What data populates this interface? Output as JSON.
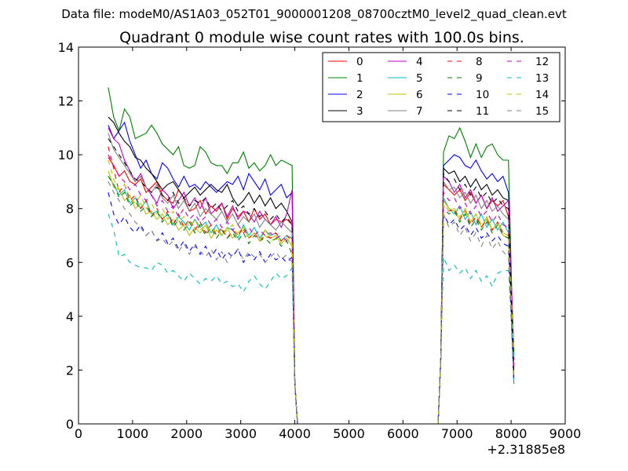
{
  "chart_data": {
    "type": "line",
    "suptitle": "Data file: modeM0/AS1A03_052T01_9000001208_08700cztM0_level2_quad_clean.evt",
    "title": "Quadrant 0 module wise count rates with 100.0s bins.",
    "xlabel": "",
    "ylabel": "",
    "x_offset_label": "+2.31885e8",
    "xlim": [
      0,
      9000
    ],
    "ylim": [
      0,
      14
    ],
    "x_ticks": [
      0,
      1000,
      2000,
      3000,
      4000,
      5000,
      6000,
      7000,
      8000,
      9000
    ],
    "y_ticks": [
      0,
      2,
      4,
      6,
      8,
      10,
      12,
      14
    ],
    "x_tick_labels": [
      "0",
      "1000",
      "2000",
      "3000",
      "4000",
      "5000",
      "6000",
      "7000",
      "8000",
      "9000"
    ],
    "y_tick_labels": [
      "0",
      "2",
      "4",
      "6",
      "8",
      "10",
      "12",
      "14"
    ],
    "grid": false,
    "legend_position": "top-right",
    "legend_columns": 4,
    "segment1": {
      "x_start": 550,
      "x_end": 3950,
      "x_step": 100
    },
    "segment2": {
      "x_start": 6750,
      "x_end": 7950,
      "x_step": 100
    },
    "series": [
      {
        "name": "0",
        "color": "#ff0000",
        "dash": false,
        "level1": [
          9.9,
          9.6,
          9.2,
          9.4,
          9.0,
          8.9,
          9.1,
          8.6,
          8.8,
          9.0,
          8.5,
          8.3,
          8.2,
          8.7,
          8.4,
          7.9,
          8.0,
          8.3,
          7.8,
          8.1,
          7.9,
          8.2,
          7.6,
          8.0,
          7.7,
          7.9,
          7.5,
          8.0,
          7.6,
          7.8,
          7.4,
          7.6,
          7.5,
          7.6,
          7.4
        ],
        "start1": 9.9,
        "level2": [
          8.9,
          8.7,
          8.5,
          8.7,
          8.3,
          8.6,
          8.2,
          8.5,
          8.0,
          8.3,
          8.1,
          8.3,
          7.7
        ]
      },
      {
        "name": "1",
        "color": "#008000",
        "dash": false,
        "level1": [
          12.5,
          11.4,
          10.9,
          11.7,
          11.4,
          10.6,
          10.7,
          10.8,
          11.1,
          10.8,
          10.4,
          10.2,
          10.0,
          10.3,
          9.6,
          9.5,
          9.6,
          10.3,
          10.1,
          9.7,
          9.6,
          9.6,
          9.3,
          9.7,
          9.7,
          10.1,
          9.5,
          9.7,
          9.4,
          9.6,
          10.0,
          9.6,
          9.8,
          9.7,
          9.6
        ],
        "start1": 12.5,
        "level2": [
          10.1,
          10.7,
          10.6,
          11.0,
          10.5,
          9.9,
          10.4,
          9.9,
          10.3,
          10.4,
          10.0,
          9.8,
          9.8
        ]
      },
      {
        "name": "2",
        "color": "#0000ff",
        "dash": false,
        "level1": [
          11.1,
          10.6,
          10.9,
          11.2,
          10.5,
          10.0,
          9.5,
          9.8,
          9.3,
          9.1,
          9.7,
          9.5,
          9.1,
          8.8,
          9.2,
          8.8,
          8.9,
          8.7,
          9.0,
          8.8,
          8.6,
          8.8,
          9.0,
          8.9,
          9.2,
          8.7,
          9.3,
          9.0,
          8.7,
          9.1,
          8.5,
          8.7,
          8.9,
          8.4,
          8.6
        ],
        "start1": 11.1,
        "level2": [
          9.6,
          9.8,
          10.0,
          9.9,
          9.6,
          9.5,
          9.8,
          9.4,
          9.1,
          9.3,
          9.0,
          9.2,
          8.6
        ]
      },
      {
        "name": "3",
        "color": "#000000",
        "dash": false,
        "level1": [
          11.4,
          11.2,
          10.8,
          10.5,
          10.3,
          9.9,
          9.8,
          9.5,
          9.3,
          9.0,
          8.7,
          8.9,
          9.0,
          8.7,
          8.4,
          8.6,
          8.8,
          8.5,
          8.7,
          8.9,
          8.7,
          8.6,
          8.9,
          8.4,
          8.1,
          8.3,
          8.6,
          8.2,
          8.5,
          8.1,
          8.4,
          8.0,
          8.2,
          7.9,
          7.5
        ],
        "start1": 11.4,
        "level2": [
          9.5,
          9.3,
          9.4,
          9.0,
          9.2,
          8.8,
          9.1,
          8.7,
          8.9,
          8.5,
          8.7,
          8.4,
          8.3
        ]
      },
      {
        "name": "4",
        "color": "#bf00bf",
        "dash": false,
        "level1": [
          11.0,
          10.6,
          10.4,
          9.8,
          9.4,
          9.0,
          9.3,
          8.8,
          8.5,
          8.2,
          8.7,
          8.5,
          8.0,
          8.3,
          8.6,
          8.1,
          8.4,
          8.0,
          8.4,
          7.8,
          8.0,
          8.2,
          7.7,
          8.1,
          7.6,
          7.9,
          7.8,
          7.5,
          7.9,
          7.6,
          7.4,
          7.7,
          7.3,
          7.8,
          8.7
        ],
        "start1": 11.0,
        "level2": [
          9.2,
          9.0,
          8.6,
          8.9,
          8.4,
          8.7,
          8.2,
          8.5,
          8.0,
          8.4,
          7.9,
          8.1,
          8.3
        ]
      },
      {
        "name": "5",
        "color": "#00bfbf",
        "dash": false,
        "level1": [
          9.2,
          8.9,
          8.5,
          8.7,
          8.2,
          8.4,
          8.0,
          8.3,
          7.8,
          7.9,
          7.6,
          7.8,
          7.4,
          7.7,
          7.5,
          7.2,
          7.6,
          7.3,
          7.5,
          7.1,
          7.4,
          7.0,
          7.3,
          7.2,
          6.9,
          7.4,
          7.0,
          7.3,
          6.9,
          7.2,
          7.0,
          7.1,
          6.8,
          7.0,
          6.9
        ],
        "start1": 9.2,
        "level2": [
          8.4,
          8.0,
          7.8,
          8.1,
          7.6,
          7.9,
          7.4,
          7.8,
          7.3,
          7.6,
          7.2,
          7.5,
          7.1
        ]
      },
      {
        "name": "6",
        "color": "#bfbf00",
        "dash": false,
        "level1": [
          9.4,
          8.8,
          8.7,
          8.3,
          8.5,
          8.0,
          8.2,
          7.8,
          7.9,
          7.6,
          7.8,
          7.4,
          7.6,
          7.2,
          7.4,
          7.0,
          7.3,
          7.1,
          7.4,
          6.9,
          7.2,
          7.0,
          7.3,
          6.9,
          7.1,
          7.3,
          6.9,
          7.1,
          6.8,
          7.2,
          6.9,
          7.0,
          6.7,
          6.9,
          6.6
        ],
        "start1": 9.4,
        "level2": [
          8.3,
          8.0,
          7.9,
          7.6,
          8.0,
          7.5,
          7.8,
          7.3,
          7.7,
          7.2,
          7.5,
          7.0,
          6.9
        ]
      },
      {
        "name": "7",
        "color": "#808080",
        "dash": false,
        "level1": [
          10.8,
          10.2,
          9.9,
          9.6,
          9.3,
          9.0,
          9.2,
          8.8,
          8.6,
          8.9,
          8.4,
          8.2,
          8.5,
          8.0,
          8.3,
          7.9,
          8.2,
          7.7,
          8.0,
          7.8,
          7.6,
          7.9,
          7.5,
          7.8,
          7.4,
          7.7,
          7.5,
          7.8,
          7.3,
          7.6,
          7.4,
          7.2,
          7.5,
          7.3,
          7.1
        ],
        "start1": 10.8,
        "level2": [
          9.0,
          8.7,
          8.8,
          8.4,
          8.6,
          8.2,
          8.5,
          8.0,
          8.3,
          7.9,
          8.1,
          7.8,
          7.6
        ]
      },
      {
        "name": "8",
        "color": "#ff0000",
        "dash": true,
        "level1": [
          10.3,
          9.5,
          8.6,
          8.9,
          8.3,
          8.5,
          8.0,
          8.3,
          7.7,
          8.0,
          7.6,
          7.9,
          7.4,
          7.8,
          7.3,
          7.6,
          7.2,
          7.5,
          7.1,
          7.4,
          7.0,
          7.3,
          6.9,
          7.2,
          7.0,
          7.3,
          6.9,
          7.1,
          6.8,
          7.0,
          6.9,
          7.1,
          6.8,
          7.0,
          6.8
        ],
        "start1": 10.3,
        "level2": [
          8.1,
          7.9,
          8.0,
          7.6,
          7.9,
          7.4,
          7.7,
          7.3,
          7.6,
          7.2,
          7.5,
          7.1,
          7.0
        ]
      },
      {
        "name": "9",
        "color": "#008000",
        "dash": true,
        "level1": [
          9.2,
          8.9,
          8.4,
          8.6,
          8.1,
          8.3,
          7.9,
          8.1,
          7.7,
          7.9,
          7.5,
          7.8,
          7.3,
          7.6,
          7.2,
          7.5,
          7.1,
          7.4,
          7.0,
          7.3,
          6.9,
          7.2,
          6.9,
          7.1,
          6.8,
          7.1,
          6.7,
          7.0,
          6.8,
          6.9,
          6.7,
          6.9,
          6.6,
          6.8,
          6.3
        ],
        "start1": 9.2,
        "level2": [
          8.0,
          7.8,
          7.9,
          7.5,
          7.8,
          7.3,
          7.6,
          7.2,
          7.5,
          7.1,
          7.4,
          7.0,
          6.9
        ]
      },
      {
        "name": "10",
        "color": "#0000ff",
        "dash": true,
        "level1": [
          8.6,
          7.8,
          7.4,
          7.7,
          7.3,
          7.1,
          7.4,
          7.0,
          7.2,
          6.8,
          7.1,
          6.7,
          6.9,
          6.5,
          6.8,
          6.4,
          6.7,
          6.3,
          6.6,
          6.2,
          6.5,
          6.1,
          6.4,
          6.2,
          6.5,
          6.0,
          6.3,
          6.1,
          6.4,
          6.0,
          6.3,
          6.1,
          6.2,
          6.0,
          6.2
        ],
        "start1": 8.6,
        "level2": [
          7.8,
          7.4,
          7.6,
          7.2,
          7.4,
          7.0,
          7.3,
          6.9,
          7.1,
          6.8,
          7.0,
          6.7,
          6.6
        ]
      },
      {
        "name": "11",
        "color": "#000000",
        "dash": true,
        "level1": [
          10.6,
          10.3,
          10.0,
          9.7,
          9.4,
          9.1,
          9.0,
          8.8,
          8.6,
          8.8,
          8.5,
          8.3,
          8.6,
          8.2,
          8.4,
          8.1,
          8.3,
          8.2,
          8.4,
          8.0,
          8.2,
          7.9,
          8.1,
          8.3,
          7.9,
          8.1,
          7.8,
          8.0,
          7.7,
          7.9,
          7.6,
          7.8,
          7.5,
          7.7,
          7.4
        ],
        "start1": 10.6,
        "level2": [
          9.3,
          9.0,
          9.1,
          8.7,
          8.9,
          8.5,
          8.8,
          8.4,
          8.6,
          8.2,
          8.4,
          8.1,
          8.0
        ]
      },
      {
        "name": "12",
        "color": "#bf00bf",
        "dash": true,
        "level1": [
          10.0,
          9.6,
          9.2,
          9.0,
          8.7,
          8.9,
          8.5,
          8.3,
          8.5,
          8.1,
          8.3,
          7.9,
          8.1,
          7.7,
          8.0,
          7.6,
          7.8,
          7.5,
          7.7,
          7.4,
          7.6,
          7.3,
          7.5,
          7.2,
          7.4,
          7.1,
          7.3,
          7.0,
          7.2,
          7.0,
          7.1,
          6.9,
          7.0,
          6.8,
          6.9
        ],
        "start1": 10.0,
        "level2": [
          8.6,
          8.3,
          8.4,
          8.0,
          8.2,
          7.8,
          8.1,
          7.7,
          7.9,
          7.5,
          7.8,
          7.4,
          7.3
        ]
      },
      {
        "name": "13",
        "color": "#00bfbf",
        "dash": true,
        "level1": [
          7.8,
          7.2,
          6.2,
          6.3,
          6.0,
          5.9,
          5.8,
          5.8,
          5.7,
          6.0,
          5.9,
          5.6,
          5.7,
          5.5,
          5.3,
          5.6,
          5.4,
          5.2,
          5.4,
          5.3,
          5.5,
          5.2,
          5.3,
          5.1,
          5.2,
          4.9,
          5.3,
          5.5,
          5.2,
          5.0,
          5.3,
          5.6,
          5.4,
          5.5,
          5.8
        ],
        "start1": 7.8,
        "level2": [
          6.2,
          5.7,
          5.9,
          5.6,
          5.8,
          5.4,
          5.7,
          5.3,
          5.5,
          5.1,
          5.6,
          5.7,
          5.7
        ]
      },
      {
        "name": "14",
        "color": "#bfbf00",
        "dash": true,
        "level1": [
          9.8,
          9.1,
          8.7,
          8.9,
          8.4,
          8.2,
          8.5,
          8.0,
          8.2,
          7.8,
          8.0,
          7.6,
          7.9,
          7.5,
          7.7,
          7.3,
          7.6,
          7.2,
          7.4,
          7.1,
          7.3,
          7.0,
          7.2,
          7.4,
          7.0,
          7.2,
          6.9,
          7.1,
          6.8,
          7.0,
          6.8,
          6.9,
          6.7,
          6.9,
          6.7
        ],
        "start1": 9.8,
        "level2": [
          8.2,
          7.9,
          8.0,
          7.7,
          7.9,
          7.5,
          7.8,
          7.4,
          7.6,
          7.2,
          7.5,
          7.1,
          7.0
        ]
      },
      {
        "name": "15",
        "color": "#808080",
        "dash": true,
        "level1": [
          9.0,
          8.6,
          8.3,
          8.0,
          7.8,
          7.5,
          7.3,
          7.0,
          7.2,
          6.8,
          6.9,
          6.6,
          6.8,
          6.4,
          6.7,
          6.3,
          6.6,
          6.4,
          6.2,
          6.5,
          6.1,
          6.4,
          6.0,
          6.3,
          6.5,
          6.1,
          6.4,
          6.2,
          6.3,
          6.0,
          6.2,
          6.4,
          6.1,
          6.3,
          6.0
        ],
        "start1": 9.0,
        "level2": [
          7.8,
          7.3,
          7.5,
          7.0,
          7.3,
          6.8,
          7.1,
          6.6,
          7.0,
          6.5,
          6.8,
          6.4,
          6.2
        ]
      }
    ]
  }
}
